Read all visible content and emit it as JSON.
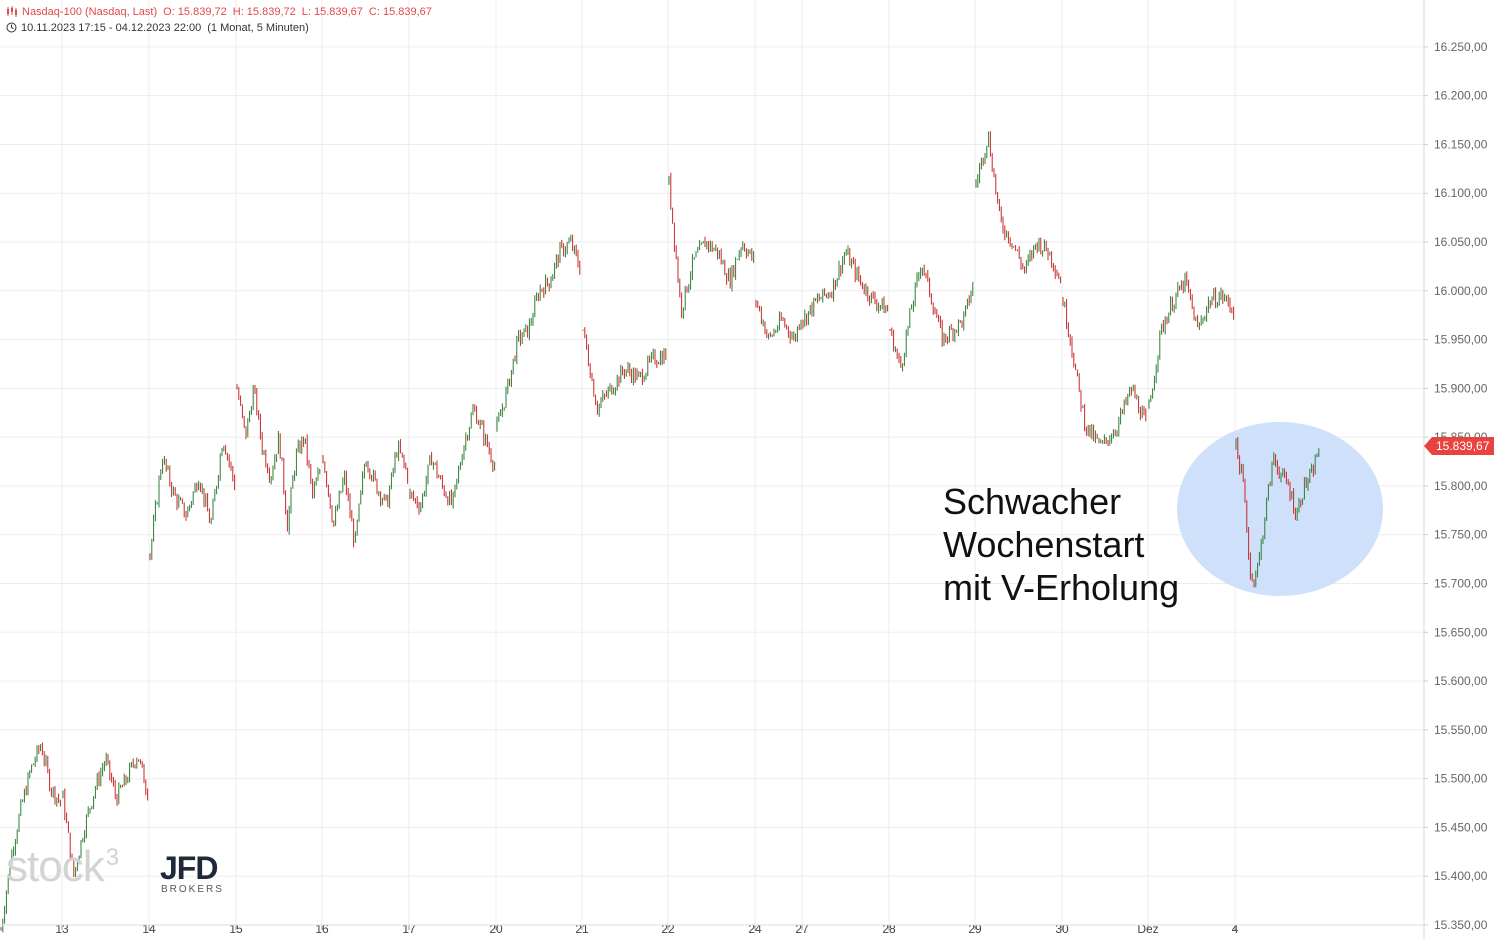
{
  "header": {
    "instrument": "Nasdaq-100 (Nasdaq, Last)",
    "open": "O: 15.839,72",
    "high": "H: 15.839,72",
    "low": "L: 15.839,67",
    "close": "C: 15.839,67",
    "range": "10.11.2023 17:15 - 04.12.2023 22:00",
    "interval": "(1 Monat, 5 Minuten)"
  },
  "annotation": {
    "line1": "Schwacher",
    "line2": "Wochenstart",
    "line3": "mit V-Erholung"
  },
  "last_price_label": "15.839,67",
  "watermark": {
    "stock": "stock",
    "sup": "3",
    "jfd": "JFD",
    "brokers": "BROKERS"
  },
  "colors": {
    "up": "#2e7d32",
    "down": "#c62828",
    "highlight": "#cfe0fb",
    "last_price": "#e8433f"
  },
  "chart_data": {
    "type": "line",
    "ylim": [
      15337,
      16290
    ],
    "yticks": [
      15350,
      15400,
      15450,
      15500,
      15550,
      15600,
      15650,
      15700,
      15750,
      15800,
      15850,
      15900,
      15950,
      16000,
      16050,
      16100,
      16150,
      16200,
      16250
    ],
    "ytick_labels": [
      "15.350,00",
      "15.400,00",
      "15.450,00",
      "15.500,00",
      "15.550,00",
      "15.600,00",
      "15.650,00",
      "15.700,00",
      "15.750,00",
      "15.800,00",
      "15.850,00",
      "15.900,00",
      "15.950,00",
      "16.000,00",
      "16.050,00",
      "16.100,00",
      "16.150,00",
      "16.200,00",
      "16.250,00"
    ],
    "x_tick_labels": [
      "13",
      "14",
      "15",
      "16",
      "17",
      "20",
      "21",
      "22",
      "24",
      "27",
      "28",
      "29",
      "30",
      "Dez",
      "4"
    ],
    "sessions": [
      {
        "label": "10.11.",
        "points": [
          15345,
          15420,
          15470,
          15510,
          15535,
          15490,
          15475
        ]
      },
      {
        "label": "13",
        "points": [
          15480,
          15400,
          15450,
          15490,
          15520,
          15480,
          15500,
          15525,
          15485
        ]
      },
      {
        "label": "14",
        "points": [
          15730,
          15830,
          15790,
          15770,
          15810,
          15760,
          15850,
          15800
        ]
      },
      {
        "label": "15",
        "points": [
          15900,
          15850,
          15900,
          15840,
          15810,
          15850,
          15760,
          15830,
          15850,
          15790,
          15820
        ]
      },
      {
        "label": "16",
        "points": [
          15830,
          15760,
          15810,
          15740,
          15830,
          15800,
          15780,
          15840,
          15810
        ]
      },
      {
        "label": "17",
        "points": [
          15790,
          15780,
          15830,
          15800,
          15780,
          15840,
          15880,
          15850,
          15820
        ]
      },
      {
        "label": "20",
        "points": [
          15860,
          15900,
          15950,
          15960,
          16000,
          16010,
          16040,
          16050,
          16020
        ]
      },
      {
        "label": "21",
        "points": [
          15960,
          15880,
          15900,
          15920,
          15910,
          15930,
          15935
        ]
      },
      {
        "label": "22",
        "points": [
          16110,
          15980,
          16030,
          16050,
          16040,
          16010,
          16050,
          16030
        ]
      },
      {
        "label": "24",
        "points": [
          15990,
          15970,
          15950,
          15960,
          15970,
          15960,
          15950,
          15975
        ]
      },
      {
        "label": "27",
        "points": [
          15970,
          15990,
          16000,
          16040,
          16010,
          15990,
          15980
        ]
      },
      {
        "label": "28",
        "points": [
          15960,
          15920,
          15980,
          16030,
          15990,
          15950,
          15960,
          15970,
          16010
        ]
      },
      {
        "label": "29",
        "points": [
          16110,
          16160,
          16070,
          16050,
          16020,
          16050,
          16040,
          16010
        ]
      },
      {
        "label": "30",
        "points": [
          15990,
          15950,
          15900,
          15860,
          15850,
          15840,
          15850,
          15860,
          15880,
          15900,
          15880,
          15860
        ]
      },
      {
        "label": "Dez",
        "points": [
          15880,
          15960,
          15990,
          16010,
          15960,
          15990,
          15995,
          15980
        ]
      },
      {
        "label": "4",
        "points": [
          15840,
          15800,
          15700,
          15720,
          15780,
          15830,
          15810,
          15800,
          15770,
          15800,
          15810,
          15840
        ]
      }
    ]
  }
}
